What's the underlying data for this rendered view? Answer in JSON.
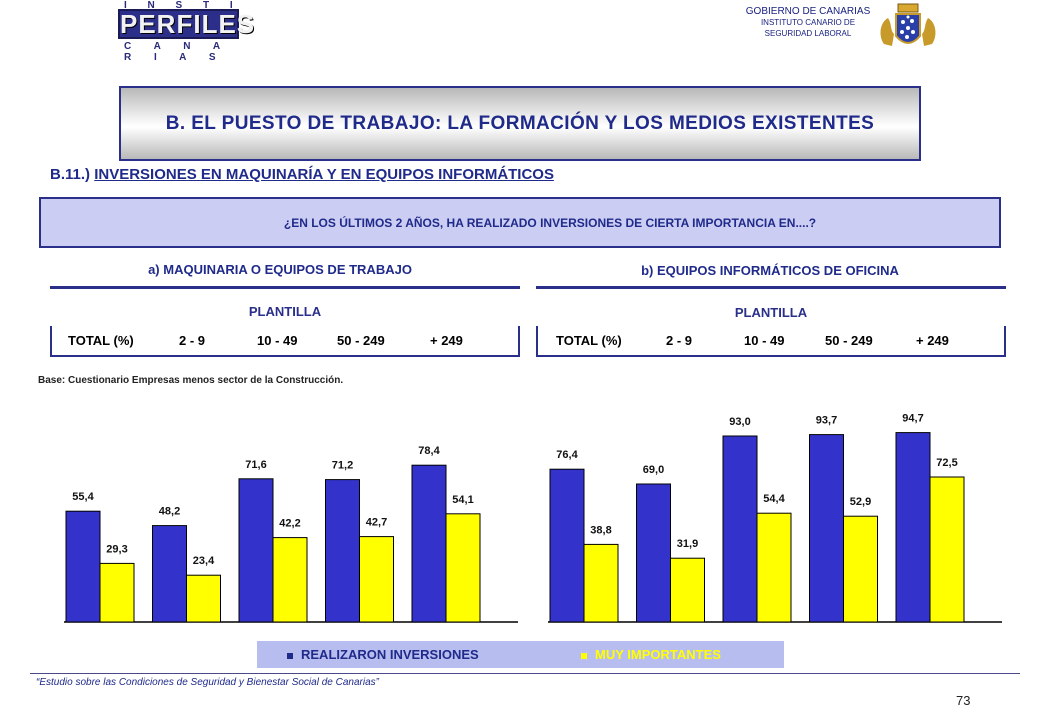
{
  "header": {
    "logo_line1": "I N S T I T U T O",
    "logo_line2": "PERFILES",
    "logo_line3": "C A N A R I A S",
    "gov_line1": "GOBIERNO DE CANARIAS",
    "gov_line2": "INSTITUTO CANARIO DE",
    "gov_line3": "SEGURIDAD LABORAL"
  },
  "title": "B. EL PUESTO DE TRABAJO: LA FORMACIÓN Y LOS MEDIOS EXISTENTES",
  "section_prefix": "B.11.)",
  "section_title": "INVERSIONES EN MAQUINARÍA Y EN EQUIPOS INFORMÁTICOS",
  "question": "¿EN LOS ÚLTIMOS 2 AÑOS, HA REALIZADO INVERSIONES DE CIERTA IMPORTANCIA EN....?",
  "plantilla_label": "PLANTILLA",
  "base_note": "Base: Cuestionario Empresas menos sector de la Construcción.",
  "legend": {
    "series1": "REALIZARON INVERSIONES",
    "series2": "MUY IMPORTANTES"
  },
  "colors": {
    "series1": "#3333cc",
    "series2": "#ffff00",
    "accent": "#1f2a8a"
  },
  "footer": "“Estudio sobre las Condiciones de Seguridad y Bienestar Social de Canarias”",
  "page_number": "73",
  "chart_data": [
    {
      "type": "bar",
      "title": "a) MAQUINARIA O EQUIPOS DE TRABAJO",
      "categories": [
        "TOTAL (%)",
        "2 - 9",
        "10 - 49",
        "50 - 249",
        "+ 249"
      ],
      "series": [
        {
          "name": "REALIZARON INVERSIONES",
          "values": [
            55.4,
            48.2,
            71.6,
            71.2,
            78.4
          ],
          "labels": [
            "55,4",
            "48,2",
            "71,6",
            "71,2",
            "78,4"
          ]
        },
        {
          "name": "MUY IMPORTANTES",
          "values": [
            29.3,
            23.4,
            42.2,
            42.7,
            54.1
          ],
          "labels": [
            "29,3",
            "23,4",
            "42,2",
            "42,7",
            "54,1"
          ]
        }
      ],
      "ylim": [
        0,
        100
      ],
      "grid": false,
      "legend": "bottom"
    },
    {
      "type": "bar",
      "title": "b) EQUIPOS INFORMÁTICOS DE OFICINA",
      "categories": [
        "TOTAL (%)",
        "2 - 9",
        "10 - 49",
        "50 - 249",
        "+ 249"
      ],
      "series": [
        {
          "name": "REALIZARON INVERSIONES",
          "values": [
            76.4,
            69.0,
            93.0,
            93.7,
            94.7
          ],
          "labels": [
            "76,4",
            "69,0",
            "93,0",
            "93,7",
            "94,7"
          ]
        },
        {
          "name": "MUY IMPORTANTES",
          "values": [
            38.8,
            31.9,
            54.4,
            52.9,
            72.5
          ],
          "labels": [
            "38,8",
            "31,9",
            "54,4",
            "52,9",
            "72,5"
          ]
        }
      ],
      "ylim": [
        0,
        100
      ],
      "grid": false,
      "legend": "bottom"
    }
  ]
}
